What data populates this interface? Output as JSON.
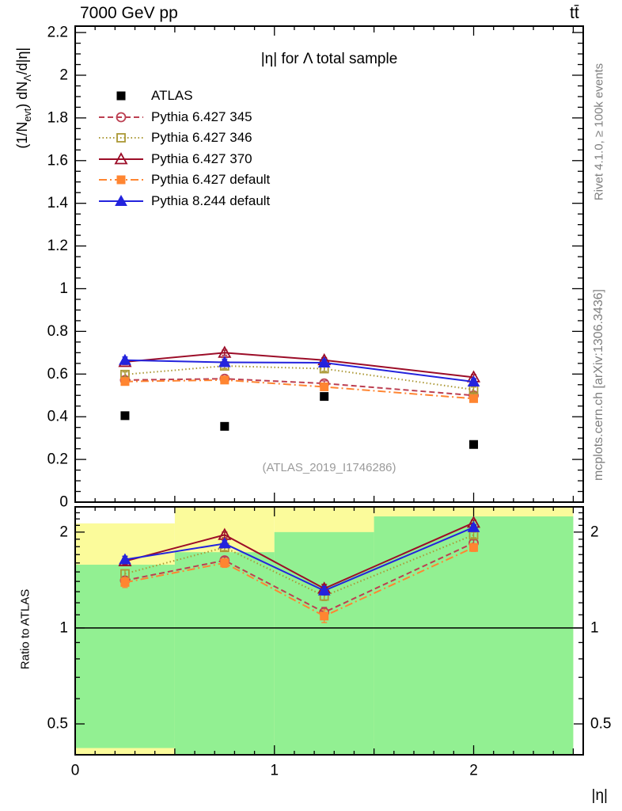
{
  "header": {
    "left": "7000 GeV pp",
    "right": "tt̄"
  },
  "side_notes": {
    "rivet": "Rivet 4.1.0, ≥ 100k events",
    "mcplots": "mcplots.cern.ch [arXiv:1306.3436]"
  },
  "watermark": "(ATLAS_2019_I1746286)",
  "chart_data": {
    "type": "line",
    "title": "|η| for Λ total sample",
    "xlabel": "|η|",
    "ylabel": "(1/N_evt) dN_Λ/d|η|",
    "ylabel_parts": [
      {
        "text": "(1/N"
      },
      {
        "text": "evt",
        "sub": true
      },
      {
        "text": ") dN"
      },
      {
        "text": "Λ",
        "sub": true
      },
      {
        "text": "/d|η|"
      }
    ],
    "ratio_label": "Ratio to ATLAS",
    "x": [
      0.25,
      0.75,
      1.25,
      2.0
    ],
    "bin_edges": [
      0,
      0.5,
      1.0,
      1.5,
      2.5
    ],
    "xlim": [
      0,
      2.55
    ],
    "main_ylim": [
      0,
      2.23
    ],
    "ratio_ylim": [
      0.4,
      2.4
    ],
    "ratio_scale": "log",
    "xticks": {
      "values": [
        0,
        1,
        2
      ],
      "labels": [
        "0",
        "1",
        "2"
      ]
    },
    "main_yticks": {
      "values": [
        0,
        0.2,
        0.4,
        0.6,
        0.8,
        1.0,
        1.2,
        1.4,
        1.6,
        1.8,
        2.0,
        2.2
      ],
      "labels": [
        "0",
        "0.2",
        "0.4",
        "0.6",
        "0.8",
        "1",
        "1.2",
        "1.4",
        "1.6",
        "1.8",
        "2",
        "2.2"
      ]
    },
    "ratio_yticks": {
      "values": [
        0.5,
        1,
        2
      ],
      "labels": [
        "0.5",
        "1",
        "2"
      ]
    },
    "reference_line": 1,
    "band_colors": {
      "yellow": "#fbfb9b",
      "green": "#92f092"
    },
    "bands": [
      {
        "range": [
          0.0,
          0.5
        ],
        "yellow": [
          0.4,
          2.13
        ],
        "green": [
          0.42,
          1.58
        ]
      },
      {
        "range": [
          0.5,
          1.0
        ],
        "yellow": [
          0.4,
          2.4
        ],
        "green": [
          0.4,
          1.73
        ]
      },
      {
        "range": [
          1.0,
          1.5
        ],
        "yellow": [
          0.4,
          2.4
        ],
        "green": [
          0.4,
          2.0
        ]
      },
      {
        "range": [
          1.5,
          2.5
        ],
        "yellow": [
          0.4,
          2.4
        ],
        "green": [
          0.4,
          2.24
        ]
      }
    ],
    "series": [
      {
        "key": "atlas",
        "name": "ATLAS",
        "color": "#000000",
        "line": "none",
        "marker": "square",
        "fill": "filled",
        "values": [
          0.405,
          0.355,
          0.495,
          0.27
        ],
        "ratio": null
      },
      {
        "key": "pythia6-345",
        "name": "Pythia 6.427 345",
        "color": "#bc3f51",
        "line": "dashed",
        "dash": "7,4",
        "marker": "circle",
        "fill": "open",
        "err": 0.012,
        "ratio_err": 0.04,
        "values": [
          0.572,
          0.578,
          0.556,
          0.5
        ],
        "ratio": [
          1.41,
          1.63,
          1.12,
          1.85
        ]
      },
      {
        "key": "pythia6-346",
        "name": "Pythia 6.427 346",
        "color": "#ab9835",
        "line": "dotted",
        "dash": "1.5,3",
        "marker": "square",
        "fill": "open",
        "err": 0.012,
        "ratio_err": 0.04,
        "values": [
          0.598,
          0.638,
          0.625,
          0.527
        ],
        "ratio": [
          1.48,
          1.79,
          1.26,
          1.96
        ]
      },
      {
        "key": "pythia6-370",
        "name": "Pythia 6.427 370",
        "color": "#9c0d28",
        "line": "solid",
        "dash": "",
        "marker": "triangle",
        "fill": "open",
        "err": 0.012,
        "ratio_err": 0.04,
        "values": [
          0.657,
          0.7,
          0.665,
          0.585
        ],
        "ratio": [
          1.62,
          1.96,
          1.33,
          2.14
        ]
      },
      {
        "key": "pythia6-default",
        "name": "Pythia 6.427 default",
        "color": "#ff8531",
        "line": "dashdot",
        "dash": "10,4,2,4",
        "marker": "square",
        "fill": "filled",
        "err": 0.015,
        "ratio_err": 0.05,
        "values": [
          0.565,
          0.572,
          0.54,
          0.485
        ],
        "ratio": [
          1.39,
          1.6,
          1.09,
          1.79
        ]
      },
      {
        "key": "pythia8-default",
        "name": "Pythia 8.244 default",
        "color": "#2323dd",
        "line": "solid",
        "dash": "",
        "marker": "triangle",
        "fill": "filled",
        "err": 0.015,
        "ratio_err": 0.04,
        "values": [
          0.665,
          0.655,
          0.653,
          0.564
        ],
        "ratio": [
          1.64,
          1.84,
          1.31,
          2.07
        ]
      }
    ]
  }
}
